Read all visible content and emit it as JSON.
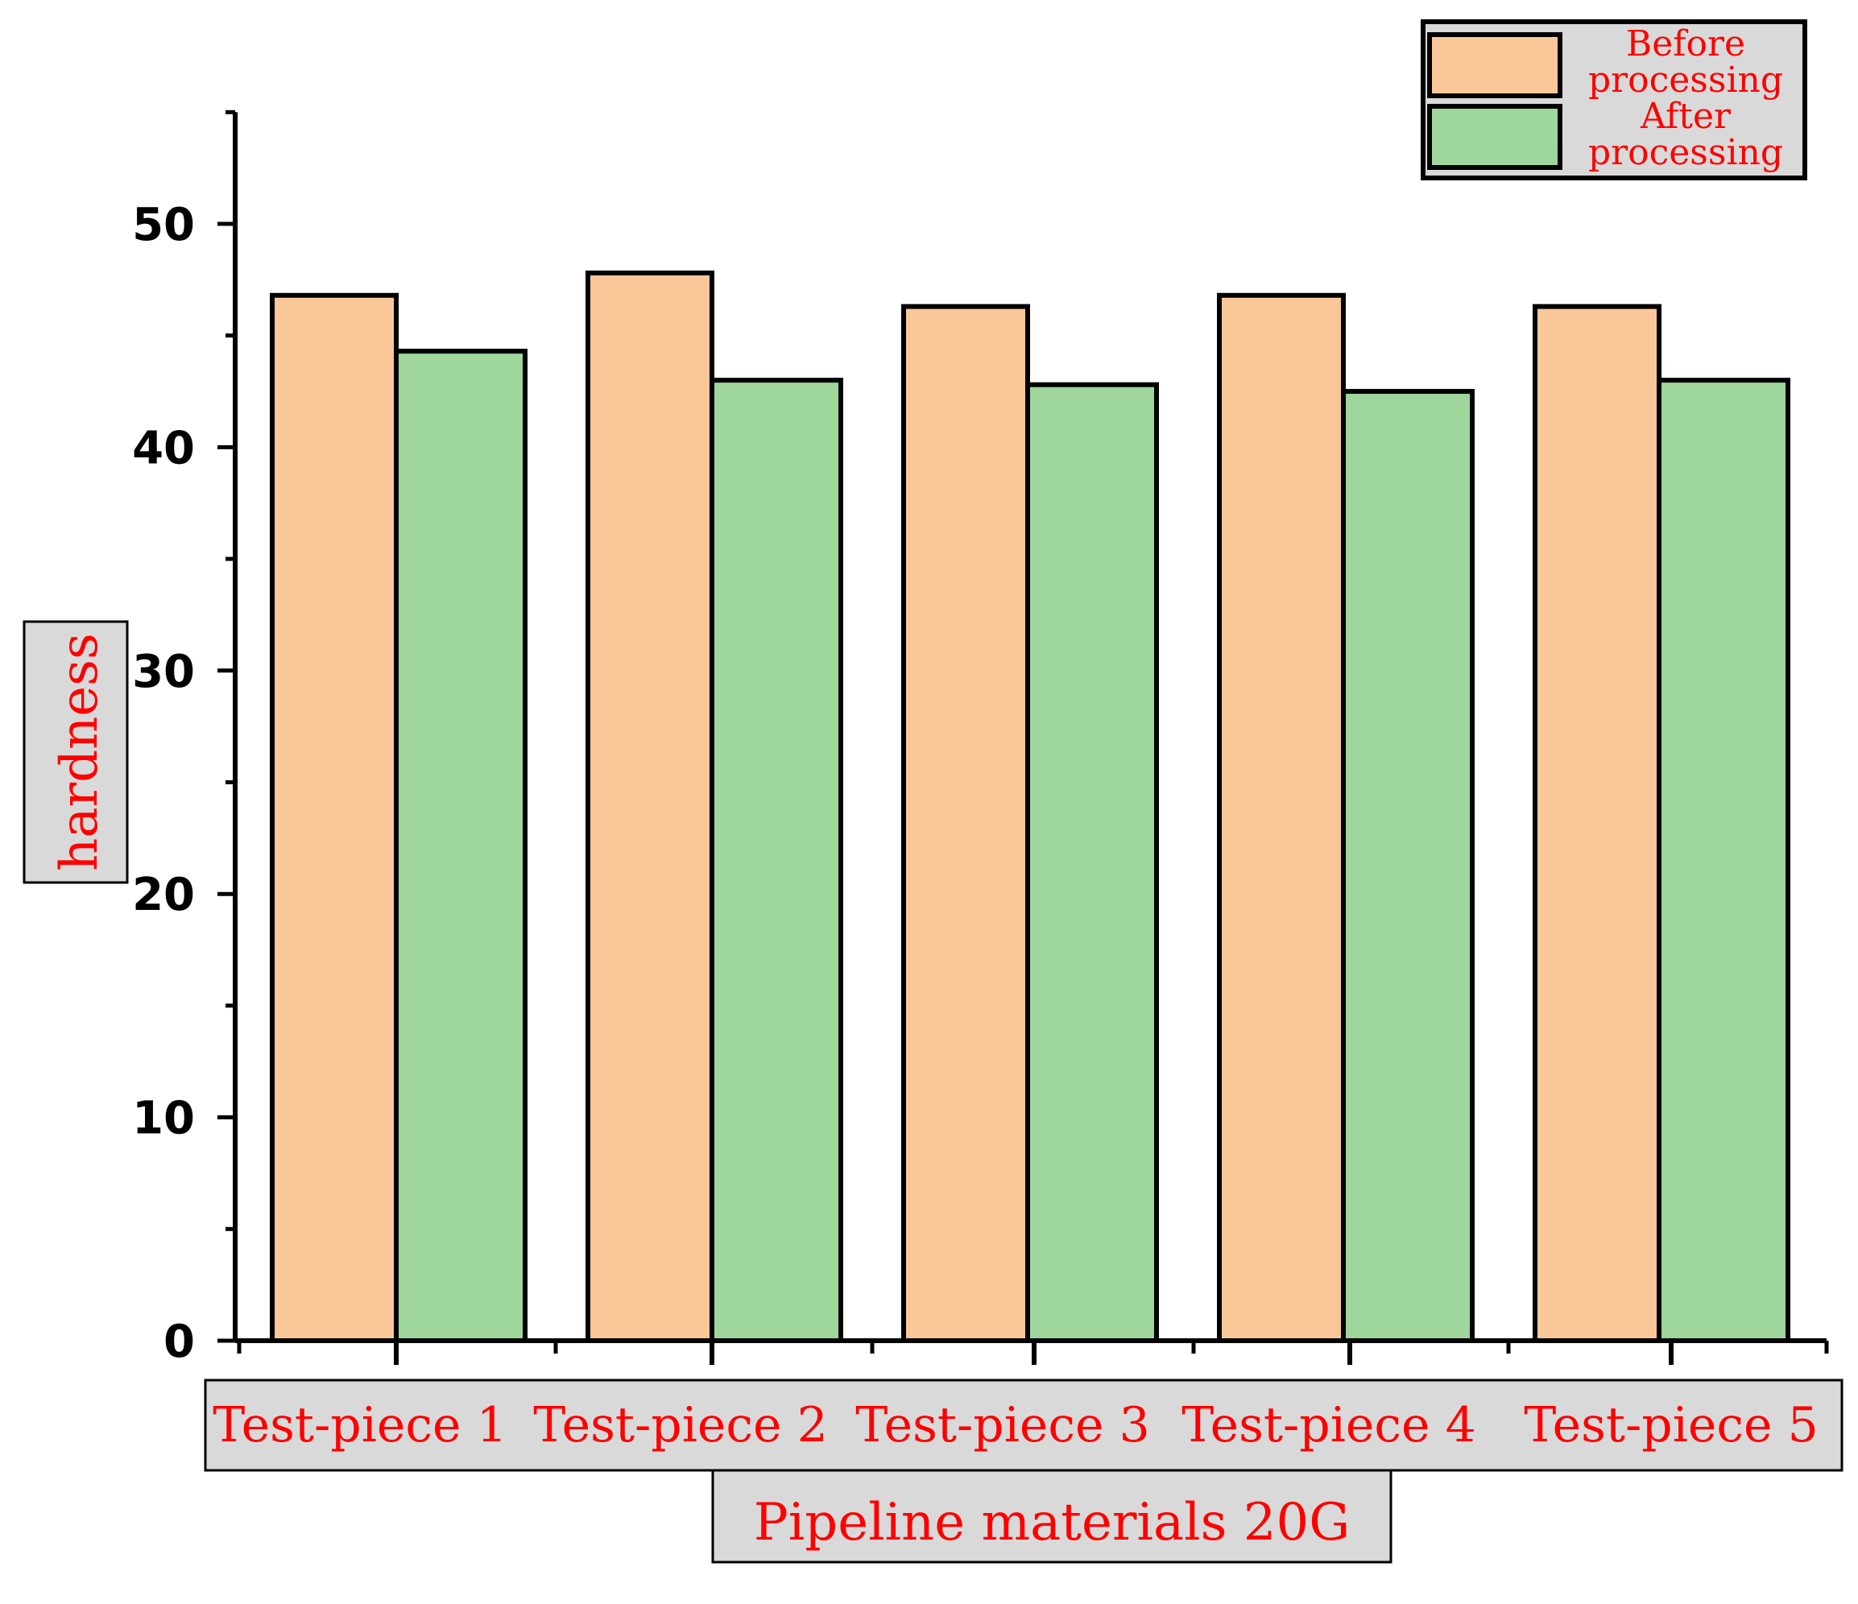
{
  "chart_data": {
    "type": "bar",
    "categories": [
      "Test-piece 1",
      "Test-piece 2",
      "Test-piece 3",
      "Test-piece 4",
      "Test-piece 5"
    ],
    "series": [
      {
        "name": "Before processing",
        "legend_lines": [
          "Before",
          "processing"
        ],
        "color": "#fac898",
        "values": [
          46.8,
          47.8,
          46.3,
          46.8,
          46.3
        ]
      },
      {
        "name": "After processing",
        "legend_lines": [
          "After",
          "processing"
        ],
        "color": "#9ed69b",
        "values": [
          44.3,
          43.0,
          42.8,
          42.5,
          43.0
        ]
      }
    ],
    "xlabel": "Pipeline materials 20G",
    "ylabel": "hardness",
    "ylim": [
      0,
      55
    ],
    "yticks": [
      0,
      10,
      20,
      30,
      40,
      50
    ],
    "grid": false,
    "legend_position": "top-right"
  }
}
